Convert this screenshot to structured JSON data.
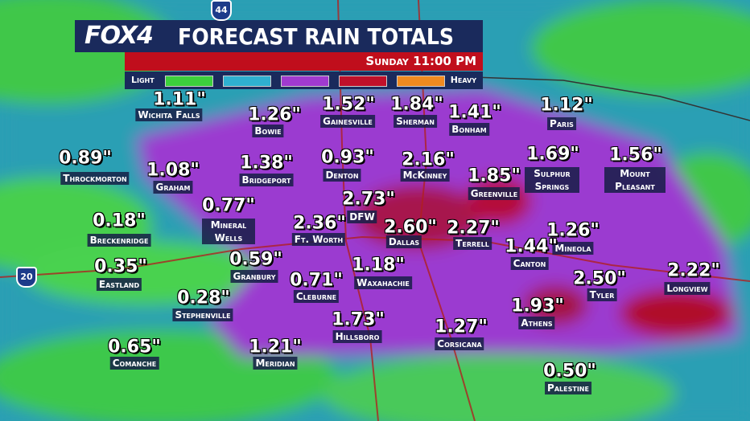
{
  "header": {
    "logo": "FOX4",
    "title": "FORECAST RAIN TOTALS",
    "time": "Sunday 11:00 PM"
  },
  "legend": {
    "low": "Light",
    "high": "Heavy",
    "colors": [
      "#3ccf3c",
      "#2fb0d0",
      "#a03ad0",
      "#c0102a",
      "#f08a20"
    ]
  },
  "shields": [
    "44",
    "20"
  ],
  "cities": [
    {
      "value": "1.11\"",
      "name": "Wichita Falls"
    },
    {
      "value": "1.26\"",
      "name": "Bowie"
    },
    {
      "value": "1.52\"",
      "name": "Gainesville"
    },
    {
      "value": "1.84\"",
      "name": "Sherman"
    },
    {
      "value": "1.41\"",
      "name": "Bonham"
    },
    {
      "value": "1.12\"",
      "name": "Paris"
    },
    {
      "value": "0.89\"",
      "name": "Throckmorton"
    },
    {
      "value": "1.08\"",
      "name": "Graham"
    },
    {
      "value": "1.38\"",
      "name": "Bridgeport"
    },
    {
      "value": "0.93\"",
      "name": "Denton"
    },
    {
      "value": "2.16\"",
      "name": "McKinney"
    },
    {
      "value": "1.85\"",
      "name": "Greenville"
    },
    {
      "value": "1.69\"",
      "name": "Sulphur Springs"
    },
    {
      "value": "1.56\"",
      "name": "Mount Pleasant"
    },
    {
      "value": "2.73\"",
      "name": "DFW"
    },
    {
      "value": "0.77\"",
      "name": "Mineral Wells"
    },
    {
      "value": "0.18\"",
      "name": "Breckenridge"
    },
    {
      "value": "2.36\"",
      "name": "Ft. Worth"
    },
    {
      "value": "2.60\"",
      "name": "Dallas"
    },
    {
      "value": "2.27\"",
      "name": "Terrell"
    },
    {
      "value": "1.26\"",
      "name": "Mineola"
    },
    {
      "value": "1.44\"",
      "name": "Canton"
    },
    {
      "value": "0.35\"",
      "name": "Eastland"
    },
    {
      "value": "0.59\"",
      "name": "Granbury"
    },
    {
      "value": "0.71\"",
      "name": "Cleburne"
    },
    {
      "value": "1.18\"",
      "name": "Waxahachie"
    },
    {
      "value": "2.50\"",
      "name": "Tyler"
    },
    {
      "value": "2.22\"",
      "name": "Longview"
    },
    {
      "value": "0.28\"",
      "name": "Stephenville"
    },
    {
      "value": "1.93\"",
      "name": "Athens"
    },
    {
      "value": "1.73\"",
      "name": "Hillsboro"
    },
    {
      "value": "1.27\"",
      "name": "Corsicana"
    },
    {
      "value": "1.21\"",
      "name": "Meridian"
    },
    {
      "value": "0.65\"",
      "name": "Comanche"
    },
    {
      "value": "0.50\"",
      "name": "Palestine"
    }
  ]
}
